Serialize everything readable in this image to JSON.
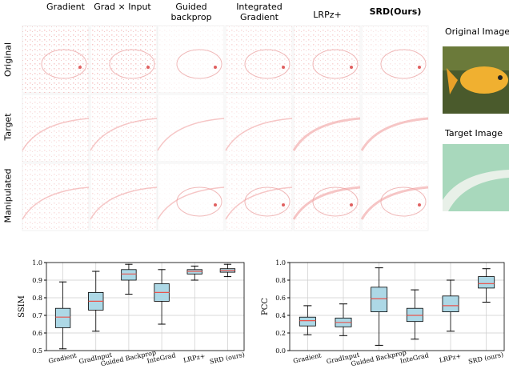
{
  "figure": {
    "columns": [
      "Gradient",
      "Grad × Input",
      "Guided backprop",
      "Integrated Gradient",
      "LRPz+",
      "SRD(Ours)"
    ],
    "rows": [
      "Original",
      "Target",
      "Manipulated"
    ],
    "side_labels": [
      "Original Image",
      "Target Image"
    ]
  },
  "chart_data": [
    {
      "type": "box",
      "ylabel": "SSIM",
      "categories": [
        "Gradient",
        "GradInput",
        "Guided Backprop",
        "InteGrad",
        "LRPz+",
        "SRD (ours)"
      ],
      "whislo": [
        0.51,
        0.61,
        0.82,
        0.65,
        0.9,
        0.92
      ],
      "q1": [
        0.63,
        0.73,
        0.9,
        0.78,
        0.935,
        0.945
      ],
      "med": [
        0.69,
        0.78,
        0.935,
        0.83,
        0.95,
        0.955
      ],
      "q3": [
        0.74,
        0.83,
        0.96,
        0.88,
        0.96,
        0.965
      ],
      "whishi": [
        0.89,
        0.95,
        0.99,
        0.96,
        0.98,
        0.99
      ],
      "color": "#add8e6",
      "median_color": "#e8554e",
      "ylim": [
        0.5,
        1.0
      ],
      "yticks": [
        0.5,
        0.6,
        0.7,
        0.8,
        0.9,
        {
          "value": 1.0,
          "label": "1.0"
        }
      ],
      "grid": true
    },
    {
      "type": "box",
      "ylabel": "PCC",
      "categories": [
        "Gradient",
        "GradInput",
        "Guided Backprop",
        "InteGrad",
        "LRPz+",
        "SRD (ours)"
      ],
      "whislo": [
        0.18,
        0.17,
        0.06,
        0.13,
        0.22,
        0.55
      ],
      "q1": [
        0.28,
        0.27,
        0.44,
        0.33,
        0.44,
        0.71
      ],
      "med": [
        0.34,
        0.32,
        0.59,
        0.4,
        0.51,
        0.76
      ],
      "q3": [
        0.38,
        0.37,
        0.72,
        0.48,
        0.62,
        0.84
      ],
      "whishi": [
        0.51,
        0.53,
        0.94,
        0.69,
        0.8,
        0.93
      ],
      "color": "#add8e6",
      "median_color": "#e8554e",
      "ylim": [
        0,
        1.0
      ],
      "yticks": [
        {
          "value": 0,
          "label": "0.0"
        },
        0.2,
        0.4,
        0.6,
        0.8,
        {
          "value": 1.0,
          "label": "1.0"
        }
      ],
      "grid": true
    }
  ]
}
